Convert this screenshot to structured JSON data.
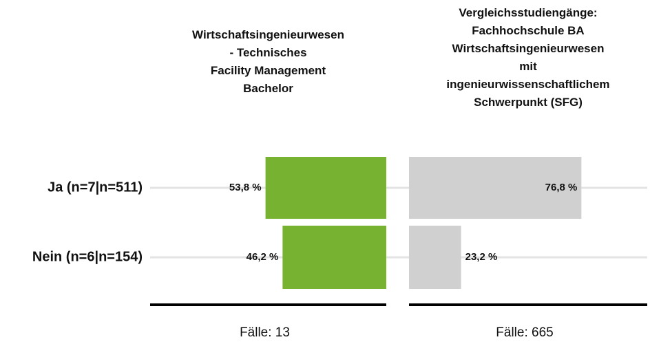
{
  "chart_data": {
    "type": "bar",
    "categories": [
      "Ja (n=7|n=511)",
      "Nein (n=6|n=154)"
    ],
    "series": [
      {
        "name": "Wirtschaftsingenieurwesen\n- Technisches\nFacility Management\nBachelor",
        "color": "#77b230",
        "values": [
          53.8,
          46.2
        ],
        "value_labels": [
          "53,8 %",
          "46,2 %"
        ],
        "footer": "Fälle: 13"
      },
      {
        "name": "Vergleichsstudiengänge:\nFachhochschule BA\nWirtschaftsingenieurwesen\nmit\ningenieurwissenschaftlichem\nSchwerpunkt (SFG)",
        "color": "#d0d0d0",
        "values": [
          76.8,
          23.2
        ],
        "value_labels": [
          "76,8 %",
          "23,2 %"
        ],
        "footer": "Fälle: 665"
      }
    ]
  }
}
